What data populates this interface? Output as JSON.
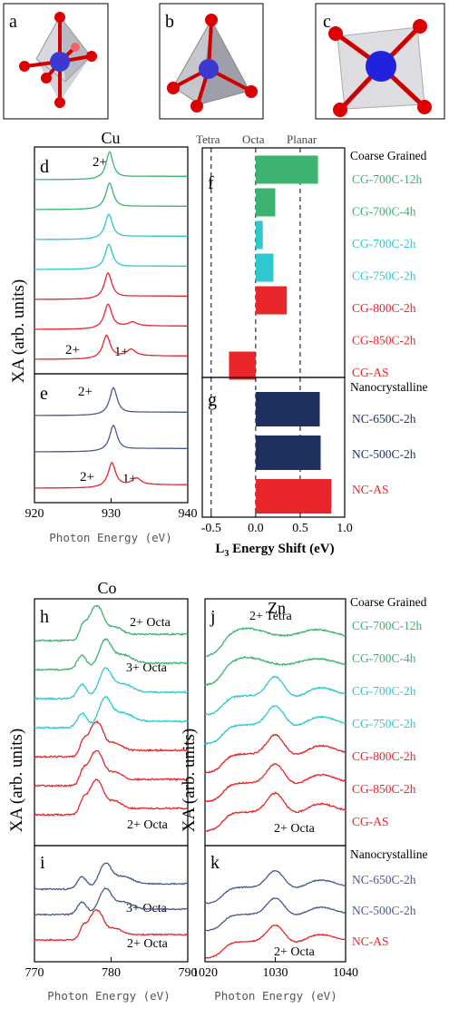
{
  "panel_letters": {
    "a": "a",
    "b": "b",
    "c": "c",
    "d": "d",
    "e": "e",
    "f": "f",
    "g": "g",
    "h": "h",
    "i": "i",
    "j": "j",
    "k": "k"
  },
  "element_labels": {
    "cu": "Cu",
    "co": "Co",
    "zn": "Zn"
  },
  "y_axis_label": "XA (arb. units)",
  "x_axis_label": "Photon Energy (eV)",
  "shift_axis_label": "L",
  "shift_axis_sub": "3",
  "shift_axis_rest": " Energy Shift (eV)",
  "group_labels": {
    "coarse": "Coarse Grained",
    "nano": "Nanocrystalline"
  },
  "coord_labels": {
    "tetra": "Tetra",
    "octa": "Octa",
    "planar": "Planar"
  },
  "colors": {
    "green": "#3cb371",
    "cyan": "#2fc8cf",
    "red": "#e8262b",
    "navy": "#1f2f5e",
    "steel": "#4a5a8e",
    "axis": "#000000",
    "label_gray": "#555555"
  },
  "chart_data": [
    {
      "type": "line",
      "panel": "d",
      "title": "Cu",
      "xlabel": "Photon Energy (eV)",
      "ylabel": "XA (arb. units)",
      "xlim": [
        920,
        940
      ],
      "x_ticks": [
        920,
        930,
        940
      ],
      "annotations": [
        "2+",
        "2+",
        "1+"
      ],
      "series": [
        {
          "name": "CG-700C-12h",
          "color": "green",
          "peak": 929.8,
          "width": 0.55,
          "amp": 1.0,
          "cu1": 0
        },
        {
          "name": "CG-700C-4h",
          "color": "green",
          "peak": 929.8,
          "width": 0.6,
          "amp": 0.95,
          "cu1": 0
        },
        {
          "name": "CG-700C-2h",
          "color": "cyan",
          "peak": 929.7,
          "width": 0.6,
          "amp": 0.9,
          "cu1": 0
        },
        {
          "name": "CG-750C-2h",
          "color": "cyan",
          "peak": 929.7,
          "width": 0.6,
          "amp": 0.9,
          "cu1": 0
        },
        {
          "name": "CG-800C-2h",
          "color": "red",
          "peak": 929.6,
          "width": 0.6,
          "amp": 0.95,
          "cu1": 0
        },
        {
          "name": "CG-850C-2h",
          "color": "red",
          "peak": 929.6,
          "width": 0.6,
          "amp": 0.9,
          "cu1": 0.15
        },
        {
          "name": "CG-AS",
          "color": "red",
          "peak": 929.4,
          "width": 0.6,
          "amp": 0.85,
          "cu1": 0.25
        }
      ]
    },
    {
      "type": "line",
      "panel": "e",
      "xlim": [
        920,
        940
      ],
      "x_ticks": [
        920,
        930,
        940
      ],
      "annotations": [
        "2+",
        "2+",
        "1+"
      ],
      "series": [
        {
          "name": "NC-650C-2h",
          "color": "steel",
          "peak": 930.3,
          "width": 0.6,
          "amp": 1.0,
          "cu1": 0
        },
        {
          "name": "NC-500C-2h",
          "color": "steel",
          "peak": 930.3,
          "width": 0.6,
          "amp": 0.95,
          "cu1": 0
        },
        {
          "name": "NC-AS",
          "color": "red",
          "peak": 930.1,
          "width": 0.6,
          "amp": 0.9,
          "cu1": 0.25
        }
      ]
    },
    {
      "type": "bar",
      "panel": "f",
      "xlabel": "L3 Energy Shift (eV)",
      "xlim": [
        -0.6,
        1.0
      ],
      "reference_lines": [
        -0.5,
        0.0,
        0.5
      ],
      "categories": [
        "CG-700C-12h",
        "CG-700C-4h",
        "CG-700C-2h",
        "CG-750C-2h",
        "CG-800C-2h",
        "CG-850C-2h",
        "CG-AS"
      ],
      "values": [
        0.7,
        0.22,
        0.08,
        0.2,
        0.35,
        0.0,
        -0.3
      ],
      "colors": [
        "green",
        "green",
        "cyan",
        "cyan",
        "red",
        "red",
        "red"
      ]
    },
    {
      "type": "bar",
      "panel": "g",
      "xlabel": "L3 Energy Shift (eV)",
      "xlim": [
        -0.6,
        1.0
      ],
      "x_ticks": [
        -0.5,
        0.0,
        0.5,
        1.0
      ],
      "reference_lines": [
        -0.5,
        0.0,
        0.5
      ],
      "categories": [
        "NC-650C-2h",
        "NC-500C-2h",
        "NC-AS"
      ],
      "values": [
        0.72,
        0.73,
        0.85
      ],
      "colors": [
        "navy",
        "navy",
        "red"
      ]
    },
    {
      "type": "line",
      "panel": "h",
      "title": "Co",
      "xlim": [
        770,
        790
      ],
      "x_ticks": [
        770,
        780,
        790
      ],
      "annotations": [
        "2+ Octa",
        "3+ Octa",
        "2+ Octa"
      ],
      "series": [
        {
          "name": "CG-700C-12h",
          "color": "green",
          "profile": "co2"
        },
        {
          "name": "CG-700C-4h",
          "color": "green",
          "profile": "co3"
        },
        {
          "name": "CG-700C-2h",
          "color": "cyan",
          "profile": "co3"
        },
        {
          "name": "CG-750C-2h",
          "color": "cyan",
          "profile": "co3"
        },
        {
          "name": "CG-800C-2h",
          "color": "red",
          "profile": "co2"
        },
        {
          "name": "CG-850C-2h",
          "color": "red",
          "profile": "co2"
        },
        {
          "name": "CG-AS",
          "color": "red",
          "profile": "co2"
        }
      ]
    },
    {
      "type": "line",
      "panel": "i",
      "xlim": [
        770,
        790
      ],
      "x_ticks": [
        770,
        780,
        790
      ],
      "annotations": [
        "3+ Octa",
        "2+ Octa"
      ],
      "series": [
        {
          "name": "NC-650C-2h",
          "color": "steel",
          "profile": "co3"
        },
        {
          "name": "NC-500C-2h",
          "color": "steel",
          "profile": "co3"
        },
        {
          "name": "NC-AS",
          "color": "red",
          "profile": "co2"
        }
      ]
    },
    {
      "type": "line",
      "panel": "j",
      "title": "Zn",
      "xlim": [
        1020,
        1040
      ],
      "x_ticks": [
        1020,
        1030,
        1040
      ],
      "annotations": [
        "2+ Tetra",
        "2+ Octa"
      ],
      "series": [
        {
          "name": "CG-700C-12h",
          "color": "green",
          "profile": "tetra"
        },
        {
          "name": "CG-700C-4h",
          "color": "green",
          "profile": "tetra"
        },
        {
          "name": "CG-700C-2h",
          "color": "cyan",
          "profile": "octa"
        },
        {
          "name": "CG-750C-2h",
          "color": "cyan",
          "profile": "octa"
        },
        {
          "name": "CG-800C-2h",
          "color": "red",
          "profile": "octa"
        },
        {
          "name": "CG-850C-2h",
          "color": "red",
          "profile": "octa"
        },
        {
          "name": "CG-AS",
          "color": "red",
          "profile": "octa"
        }
      ]
    },
    {
      "type": "line",
      "panel": "k",
      "xlim": [
        1020,
        1040
      ],
      "x_ticks": [
        1020,
        1030,
        1040
      ],
      "annotations": [
        "2+ Octa"
      ],
      "series": [
        {
          "name": "NC-650C-2h",
          "color": "steel",
          "profile": "octa"
        },
        {
          "name": "NC-500C-2h",
          "color": "steel",
          "profile": "octa"
        },
        {
          "name": "NC-AS",
          "color": "red",
          "profile": "octa"
        }
      ]
    }
  ]
}
